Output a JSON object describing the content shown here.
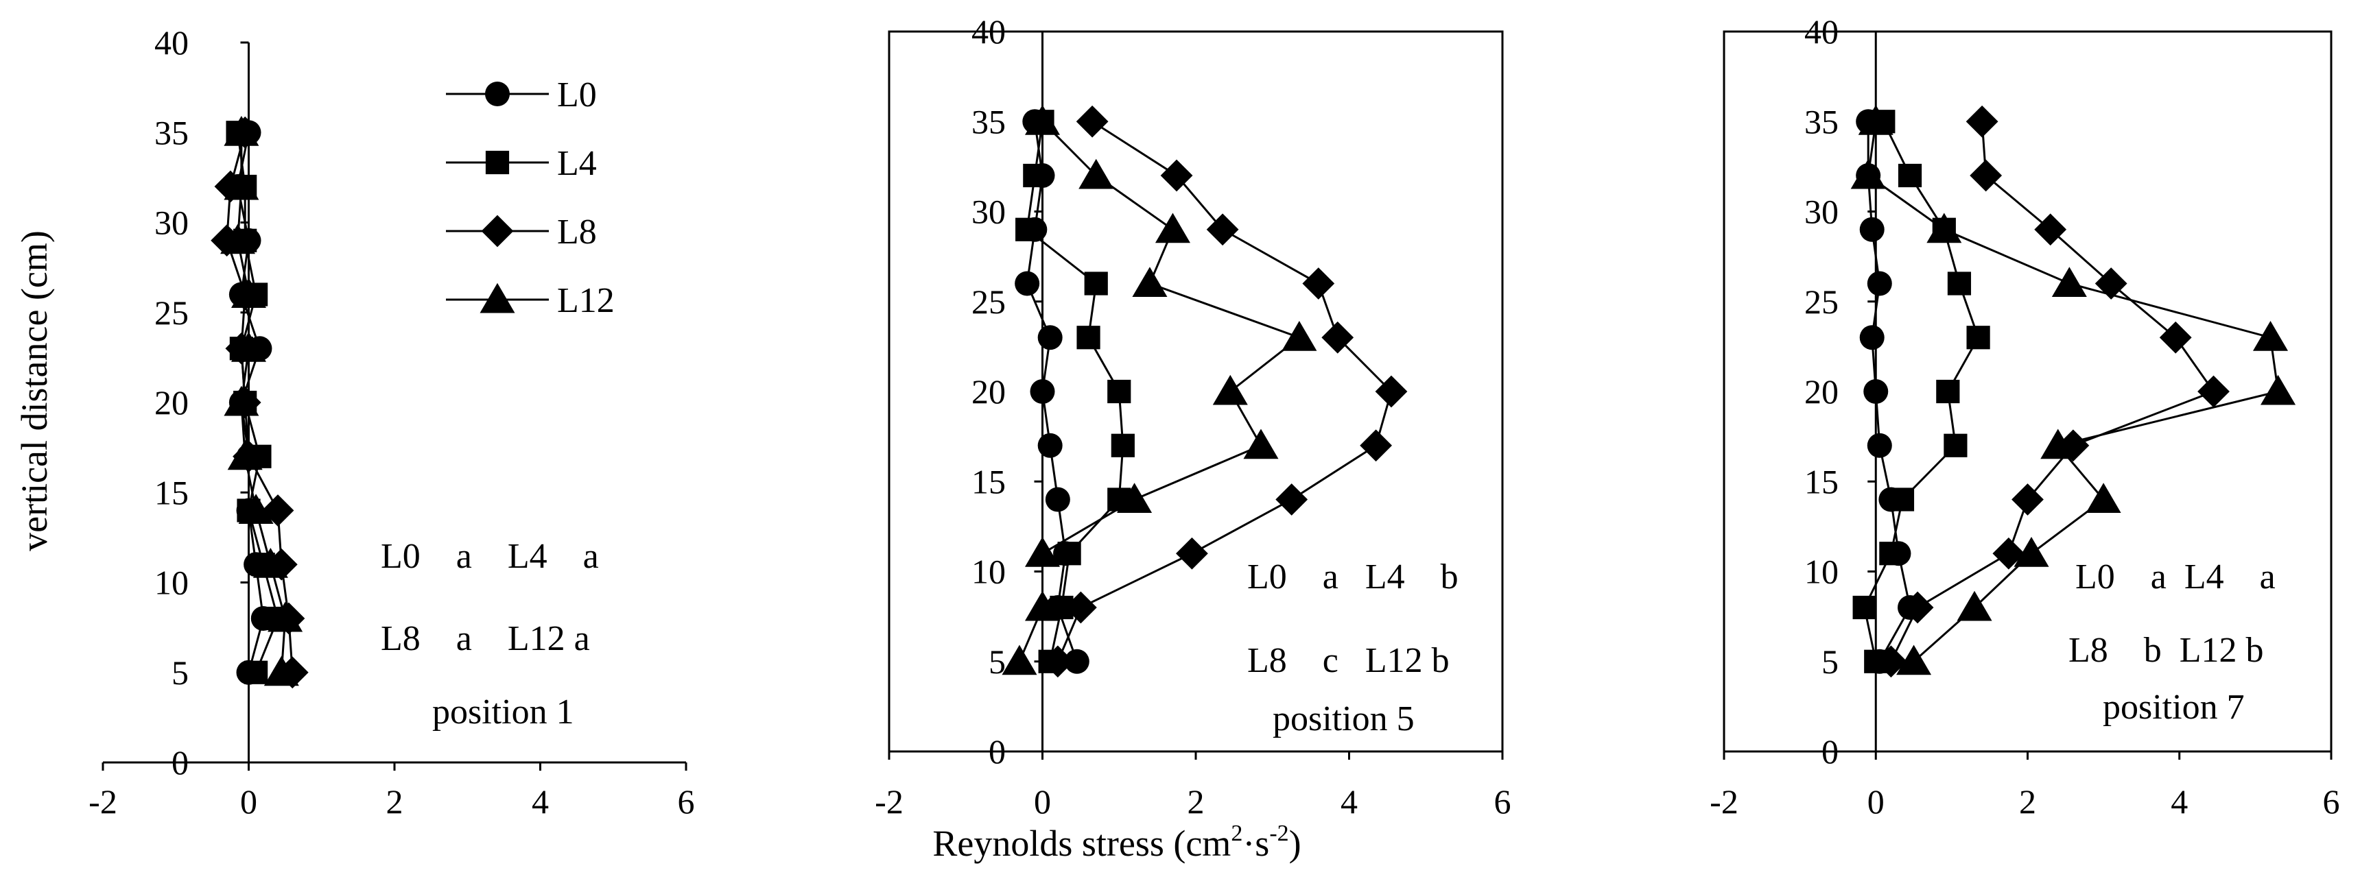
{
  "figure": {
    "shared_xlabel_prefix": "Reynolds stress (cm",
    "shared_xlabel_sup1": "2",
    "shared_xlabel_mid": "·s",
    "shared_xlabel_sup2": "-2",
    "shared_xlabel_suffix": ")",
    "shared_ylabel": "vertical distance (cm)"
  },
  "legend": {
    "entries": [
      {
        "name": "L0",
        "marker": "circle"
      },
      {
        "name": "L4",
        "marker": "square"
      },
      {
        "name": "L8",
        "marker": "diamond"
      },
      {
        "name": "L12",
        "marker": "triangle"
      }
    ]
  },
  "chart_data": [
    {
      "type": "line",
      "xlabel": "",
      "ylabel": "vertical distance (cm)",
      "xlim": [
        -2,
        6
      ],
      "ylim": [
        0,
        40
      ],
      "xticks": [
        -2,
        0,
        2,
        4,
        6
      ],
      "yticks": [
        0,
        5,
        10,
        15,
        20,
        25,
        30,
        35,
        40
      ],
      "grid": false,
      "legend_position": "top-right",
      "annotation_lines": [
        "L0    a    L4    a",
        "L8    a    L12 a",
        "position 1"
      ],
      "series": [
        {
          "name": "L0",
          "marker": "circle",
          "x": [
            0.0,
            -0.15,
            0.0,
            -0.1,
            0.15,
            -0.1,
            0.0,
            0.0,
            0.1,
            0.2,
            0.0
          ],
          "y": [
            35,
            32,
            29,
            26,
            23,
            20,
            17,
            14,
            11,
            8,
            5
          ]
        },
        {
          "name": "L4",
          "marker": "square",
          "x": [
            -0.15,
            -0.05,
            -0.05,
            0.1,
            -0.1,
            -0.05,
            0.15,
            0.0,
            0.2,
            0.4,
            0.1
          ],
          "y": [
            35,
            32,
            29,
            26,
            23,
            20,
            17,
            14,
            11,
            8,
            5
          ]
        },
        {
          "name": "L8",
          "marker": "diamond",
          "x": [
            -0.05,
            -0.25,
            -0.3,
            -0.05,
            -0.1,
            -0.05,
            0.0,
            0.4,
            0.45,
            0.55,
            0.6
          ],
          "y": [
            35,
            32,
            29,
            26,
            23,
            20,
            17,
            14,
            11,
            8,
            5
          ]
        },
        {
          "name": "L12",
          "marker": "triangle",
          "x": [
            -0.1,
            -0.1,
            -0.15,
            0.0,
            0.0,
            -0.1,
            -0.05,
            0.1,
            0.3,
            0.5,
            0.45
          ],
          "y": [
            35,
            32,
            29,
            26,
            23,
            20,
            17,
            14,
            11,
            8,
            5
          ]
        }
      ]
    },
    {
      "type": "line",
      "xlabel": "Reynolds stress (cm²·s⁻²)",
      "ylabel": "",
      "xlim": [
        -2,
        6
      ],
      "ylim": [
        0,
        40
      ],
      "xticks": [
        -2,
        0,
        2,
        4,
        6
      ],
      "yticks": [
        0,
        5,
        10,
        15,
        20,
        25,
        30,
        35,
        40
      ],
      "grid": false,
      "annotation_lines": [
        "L0    a   L4    b",
        "L8    c   L12 b",
        "position 5"
      ],
      "series": [
        {
          "name": "L0",
          "marker": "circle",
          "x": [
            -0.1,
            0.0,
            -0.1,
            -0.2,
            0.1,
            0.0,
            0.1,
            0.2,
            0.3,
            0.2,
            0.45
          ],
          "y": [
            35,
            32,
            29,
            26,
            23,
            20,
            17,
            14,
            11,
            8,
            5
          ]
        },
        {
          "name": "L4",
          "marker": "square",
          "x": [
            0.0,
            -0.1,
            -0.2,
            0.7,
            0.6,
            1.0,
            1.05,
            1.0,
            0.35,
            0.25,
            0.1
          ],
          "y": [
            35,
            32,
            29,
            26,
            23,
            20,
            17,
            14,
            11,
            8,
            5
          ]
        },
        {
          "name": "L8",
          "marker": "diamond",
          "x": [
            0.65,
            1.75,
            2.35,
            3.6,
            3.85,
            4.55,
            4.35,
            3.25,
            1.95,
            0.5,
            0.2
          ],
          "y": [
            35,
            32,
            29,
            26,
            23,
            20,
            17,
            14,
            11,
            8,
            5
          ]
        },
        {
          "name": "L12",
          "marker": "triangle",
          "x": [
            0.0,
            0.7,
            1.7,
            1.4,
            3.35,
            2.45,
            2.85,
            1.2,
            0.0,
            0.0,
            -0.3
          ],
          "y": [
            35,
            32,
            29,
            26,
            23,
            20,
            17,
            14,
            11,
            8,
            5
          ]
        }
      ]
    },
    {
      "type": "line",
      "xlabel": "",
      "ylabel": "",
      "xlim": [
        -2,
        6
      ],
      "ylim": [
        0,
        40
      ],
      "xticks": [
        -2,
        0,
        2,
        4,
        6
      ],
      "yticks": [
        0,
        5,
        10,
        15,
        20,
        25,
        30,
        35,
        40
      ],
      "grid": false,
      "annotation_lines": [
        "L0    a  L4    a",
        "L8    b  L12 b",
        "position 7"
      ],
      "series": [
        {
          "name": "L0",
          "marker": "circle",
          "x": [
            -0.1,
            -0.1,
            -0.05,
            0.05,
            -0.05,
            0.0,
            0.05,
            0.2,
            0.3,
            0.45,
            0.05
          ],
          "y": [
            35,
            32,
            29,
            26,
            23,
            20,
            17,
            14,
            11,
            8,
            5
          ]
        },
        {
          "name": "L4",
          "marker": "square",
          "x": [
            0.1,
            0.45,
            0.9,
            1.1,
            1.35,
            0.95,
            1.05,
            0.35,
            0.2,
            -0.15,
            0.0
          ],
          "y": [
            35,
            32,
            29,
            26,
            23,
            20,
            17,
            14,
            11,
            8,
            5
          ]
        },
        {
          "name": "L8",
          "marker": "diamond",
          "x": [
            1.4,
            1.45,
            2.3,
            3.1,
            3.95,
            4.45,
            2.6,
            2.0,
            1.75,
            0.55,
            0.2
          ],
          "y": [
            35,
            32,
            29,
            26,
            23,
            20,
            17,
            14,
            11,
            8,
            5
          ]
        },
        {
          "name": "L12",
          "marker": "triangle",
          "x": [
            0.0,
            -0.1,
            0.9,
            2.55,
            5.2,
            5.3,
            2.4,
            3.0,
            2.05,
            1.3,
            0.5
          ],
          "y": [
            35,
            32,
            29,
            26,
            23,
            20,
            17,
            14,
            11,
            8,
            5
          ]
        }
      ]
    }
  ]
}
